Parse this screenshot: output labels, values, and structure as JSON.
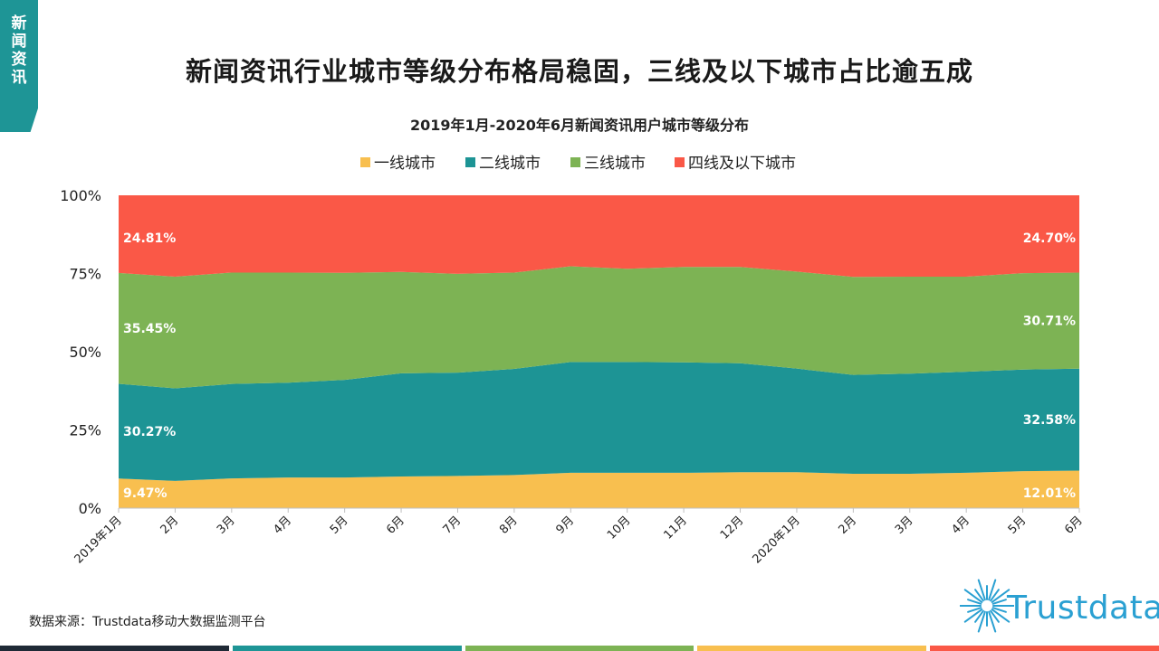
{
  "corner_tag": "新闻资讯",
  "main_title": "新闻资讯行业城市等级分布格局稳固，三线及以下城市占比逾五成",
  "source_text": "数据来源：Trustdata移动大数据监测平台",
  "brand_name": "Trustdata",
  "colors": {
    "tier1": "#f8bf4f",
    "tier2": "#1d9495",
    "tier3": "#7db354",
    "tier4": "#fa5847",
    "accent": "#1e9596",
    "brand": "#2aa0d2",
    "bar_dark": "#1f2a36"
  },
  "chart_data": {
    "type": "area",
    "stacked": true,
    "title": "2019年1月-2020年6月新闻资讯用户城市等级分布",
    "ylim": [
      0,
      100
    ],
    "yticks": [
      "0%",
      "25%",
      "50%",
      "75%",
      "100%"
    ],
    "categories": [
      "2019年1月",
      "2月",
      "3月",
      "4月",
      "5月",
      "6月",
      "7月",
      "8月",
      "9月",
      "10月",
      "11月",
      "12月",
      "2020年1月",
      "2月",
      "3月",
      "4月",
      "5月",
      "6月"
    ],
    "series": [
      {
        "name": "一线城市",
        "color": "#f8bf4f",
        "values": [
          9.47,
          8.7,
          9.5,
          9.8,
          9.8,
          10.1,
          10.3,
          10.6,
          11.3,
          11.3,
          11.3,
          11.5,
          11.5,
          11.0,
          11.0,
          11.3,
          11.8,
          12.01
        ]
      },
      {
        "name": "二线城市",
        "color": "#1d9495",
        "values": [
          30.27,
          29.6,
          30.2,
          30.3,
          31.2,
          33.0,
          33.0,
          33.9,
          35.4,
          35.4,
          35.3,
          34.8,
          33.1,
          31.6,
          32.0,
          32.3,
          32.5,
          32.58
        ]
      },
      {
        "name": "三线城市",
        "color": "#7db354",
        "values": [
          35.45,
          35.7,
          35.6,
          35.2,
          34.2,
          32.4,
          31.6,
          30.8,
          30.6,
          29.8,
          30.5,
          30.8,
          31.0,
          31.3,
          31.0,
          30.4,
          30.8,
          30.71
        ]
      },
      {
        "name": "四线及以下城市",
        "color": "#fa5847",
        "values": [
          24.81,
          26.0,
          24.7,
          24.7,
          24.8,
          24.5,
          25.1,
          24.7,
          22.7,
          23.5,
          22.9,
          22.9,
          24.4,
          26.1,
          26.0,
          26.0,
          24.9,
          24.7
        ]
      }
    ],
    "data_labels": [
      {
        "series": 0,
        "index": 0,
        "text": "9.47%"
      },
      {
        "series": 1,
        "index": 0,
        "text": "30.27%"
      },
      {
        "series": 2,
        "index": 0,
        "text": "35.45%"
      },
      {
        "series": 3,
        "index": 0,
        "text": "24.81%"
      },
      {
        "series": 0,
        "index": 17,
        "text": "12.01%"
      },
      {
        "series": 1,
        "index": 17,
        "text": "32.58%"
      },
      {
        "series": 2,
        "index": 17,
        "text": "30.71%"
      },
      {
        "series": 3,
        "index": 17,
        "text": "24.70%"
      }
    ]
  }
}
